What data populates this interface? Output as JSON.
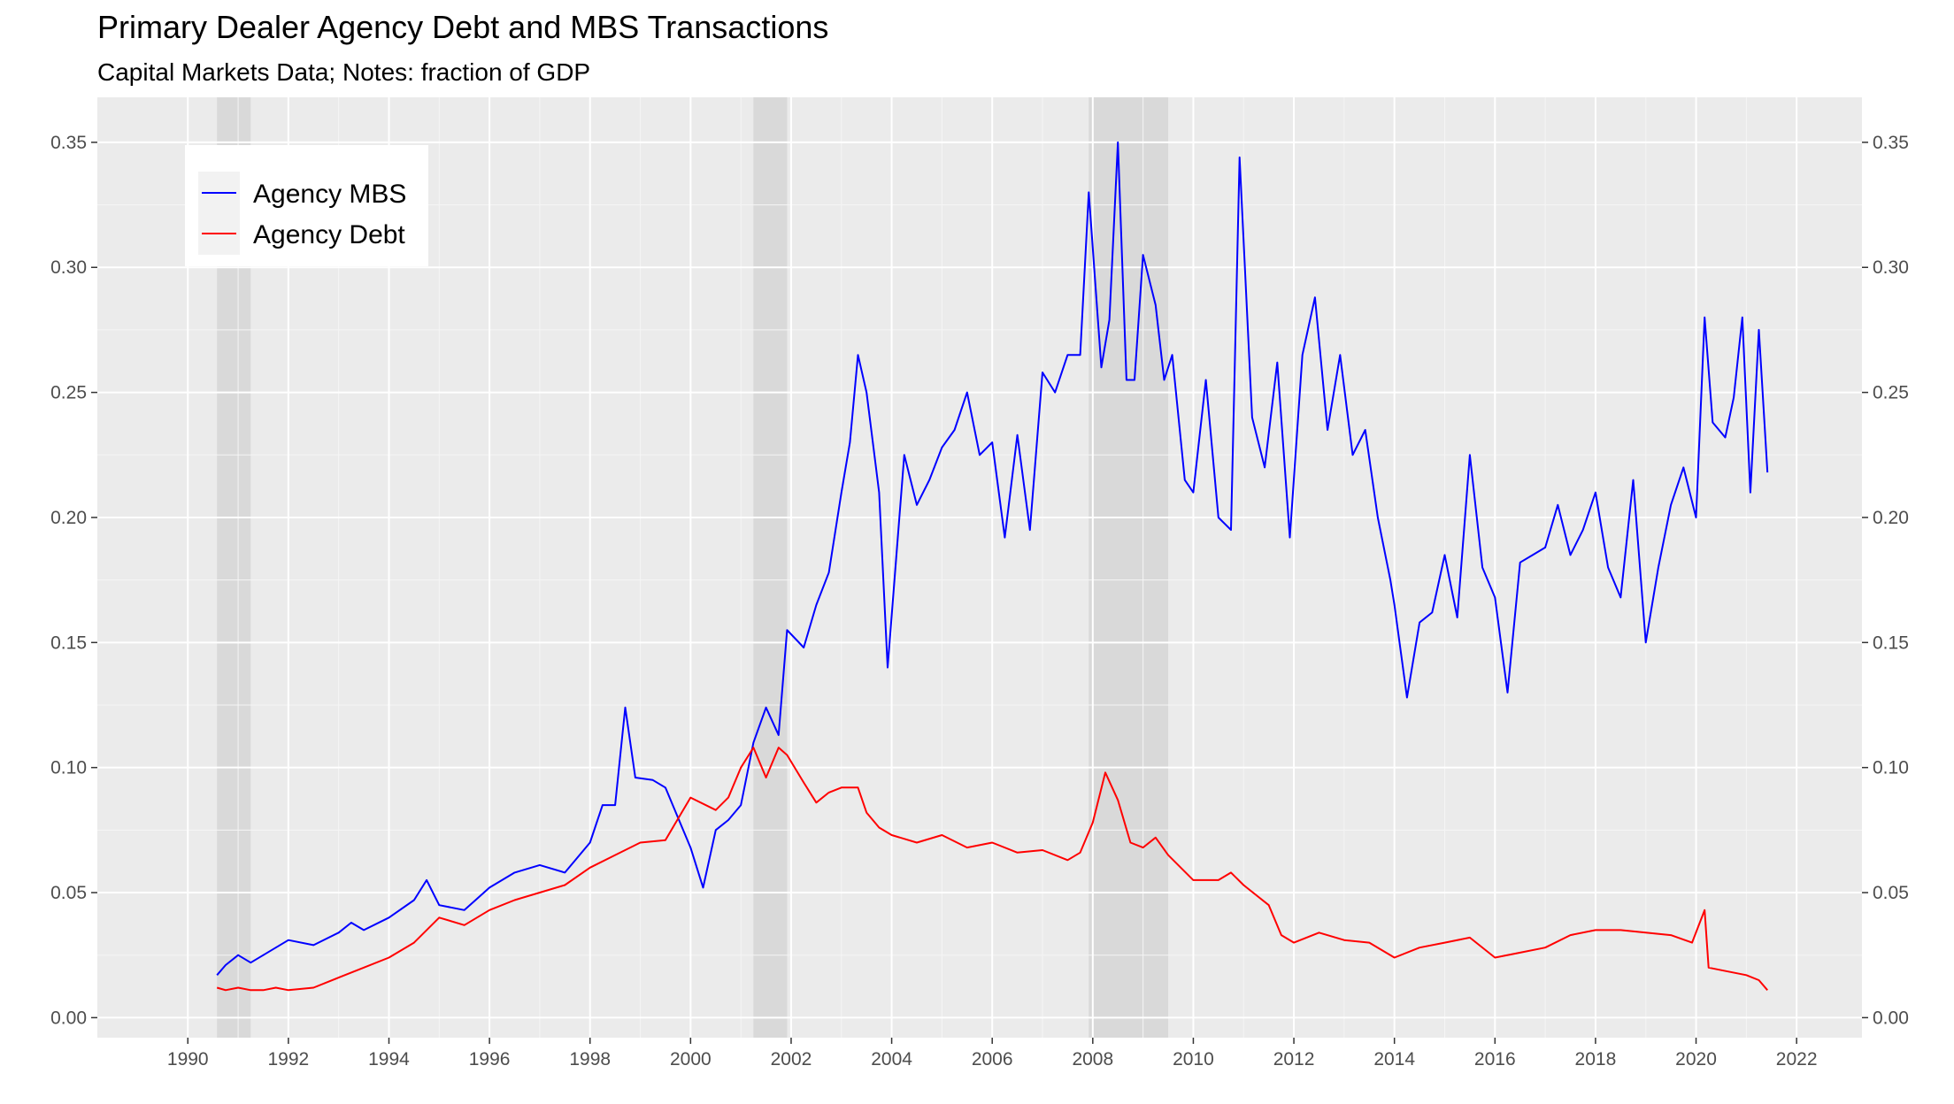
{
  "chart_data": {
    "type": "line",
    "title": "Primary Dealer Agency Debt and MBS Transactions",
    "subtitle": "Capital Markets Data; Notes: fraction of GDP",
    "xlabel": "",
    "ylabel": "",
    "xlim": [
      1988.2,
      2023.3
    ],
    "ylim": [
      -0.008,
      0.368
    ],
    "x_ticks": [
      1990,
      1992,
      1994,
      1996,
      1998,
      2000,
      2002,
      2004,
      2006,
      2008,
      2010,
      2012,
      2014,
      2016,
      2018,
      2020,
      2022
    ],
    "y_ticks": [
      0.0,
      0.05,
      0.1,
      0.15,
      0.2,
      0.25,
      0.3,
      0.35
    ],
    "y_tick_labels": [
      "0.00",
      "0.05",
      "0.10",
      "0.15",
      "0.20",
      "0.25",
      "0.30",
      "0.35"
    ],
    "secondary_y_axis": true,
    "grid": true,
    "legend_position": "top-left",
    "recessions": [
      [
        1990.58,
        1991.25
      ],
      [
        2001.25,
        2001.92
      ],
      [
        2007.92,
        2009.5
      ]
    ],
    "series": [
      {
        "name": "Agency MBS",
        "color": "#0000ff",
        "x": [
          1990.58,
          1990.75,
          1991.0,
          1991.25,
          1991.5,
          1991.75,
          1992.0,
          1992.5,
          1993.0,
          1993.25,
          1993.5,
          1994.0,
          1994.5,
          1994.75,
          1995.0,
          1995.5,
          1996.0,
          1996.5,
          1997.0,
          1997.5,
          1998.0,
          1998.25,
          1998.5,
          1998.7,
          1998.9,
          1999.25,
          1999.5,
          1999.75,
          2000.0,
          2000.25,
          2000.5,
          2000.75,
          2001.0,
          2001.25,
          2001.5,
          2001.75,
          2001.92,
          2002.25,
          2002.5,
          2002.75,
          2003.0,
          2003.17,
          2003.33,
          2003.5,
          2003.75,
          2003.92,
          2004.25,
          2004.5,
          2004.75,
          2005.0,
          2005.25,
          2005.5,
          2005.75,
          2006.0,
          2006.25,
          2006.5,
          2006.75,
          2007.0,
          2007.25,
          2007.5,
          2007.75,
          2007.92,
          2008.17,
          2008.33,
          2008.5,
          2008.67,
          2008.83,
          2009.0,
          2009.25,
          2009.42,
          2009.58,
          2009.83,
          2010.0,
          2010.25,
          2010.5,
          2010.75,
          2010.92,
          2011.17,
          2011.42,
          2011.67,
          2011.92,
          2012.17,
          2012.42,
          2012.67,
          2012.92,
          2013.17,
          2013.42,
          2013.67,
          2013.92,
          2014.0,
          2014.25,
          2014.5,
          2014.75,
          2015.0,
          2015.25,
          2015.5,
          2015.75,
          2016.0,
          2016.25,
          2016.5,
          2016.75,
          2017.0,
          2017.25,
          2017.5,
          2017.75,
          2018.0,
          2018.25,
          2018.5,
          2018.75,
          2019.0,
          2019.25,
          2019.5,
          2019.75,
          2020.0,
          2020.17,
          2020.33,
          2020.58,
          2020.75,
          2020.92,
          2021.08,
          2021.25,
          2021.42
        ],
        "values": [
          0.017,
          0.021,
          0.025,
          0.022,
          0.025,
          0.028,
          0.031,
          0.029,
          0.034,
          0.038,
          0.035,
          0.04,
          0.047,
          0.055,
          0.045,
          0.043,
          0.052,
          0.058,
          0.061,
          0.058,
          0.07,
          0.085,
          0.085,
          0.124,
          0.096,
          0.095,
          0.092,
          0.08,
          0.068,
          0.052,
          0.075,
          0.079,
          0.085,
          0.11,
          0.124,
          0.113,
          0.155,
          0.148,
          0.165,
          0.178,
          0.21,
          0.23,
          0.265,
          0.25,
          0.21,
          0.14,
          0.225,
          0.205,
          0.215,
          0.228,
          0.235,
          0.25,
          0.225,
          0.23,
          0.192,
          0.233,
          0.195,
          0.258,
          0.25,
          0.265,
          0.265,
          0.33,
          0.26,
          0.279,
          0.35,
          0.255,
          0.255,
          0.305,
          0.285,
          0.255,
          0.265,
          0.215,
          0.21,
          0.255,
          0.2,
          0.195,
          0.344,
          0.24,
          0.22,
          0.262,
          0.192,
          0.265,
          0.288,
          0.235,
          0.265,
          0.225,
          0.235,
          0.2,
          0.175,
          0.165,
          0.128,
          0.158,
          0.162,
          0.185,
          0.16,
          0.225,
          0.18,
          0.168,
          0.13,
          0.182,
          0.185,
          0.188,
          0.205,
          0.185,
          0.195,
          0.21,
          0.18,
          0.168,
          0.215,
          0.15,
          0.18,
          0.205,
          0.22,
          0.2,
          0.28,
          0.238,
          0.232,
          0.248,
          0.28,
          0.21,
          0.275,
          0.218
        ]
      },
      {
        "name": "Agency Debt",
        "color": "#ff0000",
        "x": [
          1990.58,
          1990.75,
          1991.0,
          1991.25,
          1991.5,
          1991.75,
          1992.0,
          1992.5,
          1993.0,
          1993.5,
          1994.0,
          1994.5,
          1995.0,
          1995.5,
          1996.0,
          1996.5,
          1997.0,
          1997.5,
          1998.0,
          1998.5,
          1999.0,
          1999.5,
          2000.0,
          2000.5,
          2000.75,
          2001.0,
          2001.25,
          2001.5,
          2001.75,
          2001.92,
          2002.25,
          2002.5,
          2002.75,
          2003.0,
          2003.33,
          2003.5,
          2003.75,
          2004.0,
          2004.5,
          2005.0,
          2005.5,
          2006.0,
          2006.5,
          2007.0,
          2007.5,
          2007.75,
          2008.0,
          2008.25,
          2008.5,
          2008.75,
          2009.0,
          2009.25,
          2009.5,
          2010.0,
          2010.5,
          2010.75,
          2011.0,
          2011.5,
          2011.75,
          2012.0,
          2012.5,
          2013.0,
          2013.5,
          2014.0,
          2014.5,
          2015.0,
          2015.5,
          2016.0,
          2016.5,
          2017.0,
          2017.5,
          2018.0,
          2018.5,
          2019.0,
          2019.5,
          2019.92,
          2020.17,
          2020.25,
          2020.5,
          2021.0,
          2021.25,
          2021.42
        ],
        "values": [
          0.012,
          0.011,
          0.012,
          0.011,
          0.011,
          0.012,
          0.011,
          0.012,
          0.016,
          0.02,
          0.024,
          0.03,
          0.04,
          0.037,
          0.043,
          0.047,
          0.05,
          0.053,
          0.06,
          0.065,
          0.07,
          0.071,
          0.088,
          0.083,
          0.088,
          0.1,
          0.108,
          0.096,
          0.108,
          0.105,
          0.094,
          0.086,
          0.09,
          0.092,
          0.092,
          0.082,
          0.076,
          0.073,
          0.07,
          0.073,
          0.068,
          0.07,
          0.066,
          0.067,
          0.063,
          0.066,
          0.078,
          0.098,
          0.087,
          0.07,
          0.068,
          0.072,
          0.065,
          0.055,
          0.055,
          0.058,
          0.053,
          0.045,
          0.033,
          0.03,
          0.034,
          0.031,
          0.03,
          0.024,
          0.028,
          0.03,
          0.032,
          0.024,
          0.026,
          0.028,
          0.033,
          0.035,
          0.035,
          0.034,
          0.033,
          0.03,
          0.043,
          0.02,
          0.019,
          0.017,
          0.015,
          0.011
        ]
      }
    ]
  }
}
